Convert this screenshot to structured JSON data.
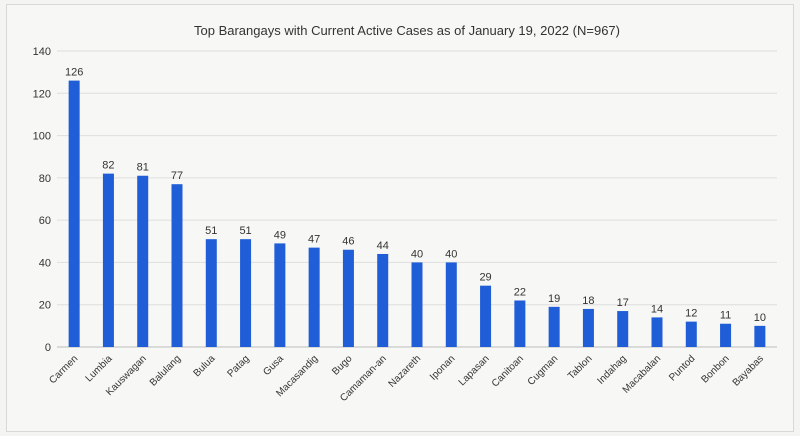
{
  "chart_data": {
    "type": "bar",
    "title": "Top Barangays with Current Active Cases as of January 19, 2022 (N=967)",
    "xlabel": "",
    "ylabel": "",
    "ylim": [
      0,
      140
    ],
    "yticks": [
      0,
      20,
      40,
      60,
      80,
      100,
      120,
      140
    ],
    "grid": true,
    "legend": "none",
    "bar_color": "#1f5ed6",
    "categories": [
      "Carmen",
      "Lumbia",
      "Kauswagan",
      "Balulang",
      "Bulua",
      "Patag",
      "Gusa",
      "Macasandig",
      "Bugo",
      "Camaman-an",
      "Nazareth",
      "Iponan",
      "Lapasan",
      "Canitoan",
      "Cugman",
      "Tablon",
      "Indahag",
      "Macabalan",
      "Puntod",
      "Bonbon",
      "Bayabas"
    ],
    "values": [
      126,
      82,
      81,
      77,
      51,
      51,
      49,
      47,
      46,
      44,
      40,
      40,
      29,
      22,
      19,
      18,
      17,
      14,
      12,
      11,
      10
    ]
  }
}
